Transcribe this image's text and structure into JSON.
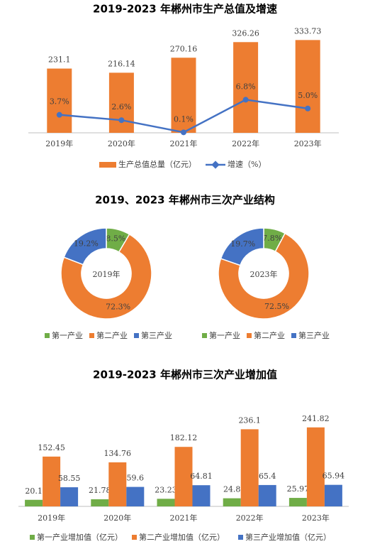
{
  "chart_data": [
    {
      "type": "bar_line",
      "title": "2019-2023 年郴州市生产总值及增速",
      "categories": [
        "2019年",
        "2020年",
        "2021年",
        "2022年",
        "2023年"
      ],
      "series": [
        {
          "name": "生产总值总量（亿元）",
          "color": "#ed7d31",
          "values": [
            231.1,
            216.14,
            270.16,
            326.26,
            333.73
          ]
        },
        {
          "name": "增速（%）",
          "color": "#4472c4",
          "axis": "y2",
          "values": [
            3.7,
            2.6,
            0.1,
            6.8,
            5.0
          ],
          "value_labels": [
            "3.7%",
            "2.6%",
            "0.1%",
            "6.8%",
            "5.0%"
          ]
        }
      ],
      "ylim": [
        0,
        350
      ],
      "y2lim": [
        0,
        20
      ]
    },
    {
      "type": "donut",
      "title": "2019、2023 年郴州市三次产业结构",
      "categories": [
        "第一产业",
        "第二产业",
        "第三产业"
      ],
      "colors": [
        "#70ad47",
        "#ed7d31",
        "#4472c4"
      ],
      "series": [
        {
          "name": "2019年",
          "values": [
            8.5,
            72.3,
            19.2
          ],
          "value_labels": [
            "8.5%",
            "72.3%",
            "19.2%"
          ]
        },
        {
          "name": "2023年",
          "values": [
            7.8,
            72.5,
            19.7
          ],
          "value_labels": [
            "7.8%",
            "72.5%",
            "19.7%"
          ]
        }
      ]
    },
    {
      "type": "grouped_bar",
      "title": "2019-2023 年郴州市三次产业增加值",
      "categories": [
        "2019年",
        "2020年",
        "2021年",
        "2022年",
        "2023年"
      ],
      "series": [
        {
          "name": "第一产业增加值（亿元）",
          "color": "#70ad47",
          "values": [
            20.1,
            21.78,
            23.23,
            24.8,
            25.97
          ]
        },
        {
          "name": "第二产业增加值（亿元）",
          "color": "#ed7d31",
          "values": [
            152.45,
            134.76,
            182.12,
            236.1,
            241.82
          ]
        },
        {
          "name": "第三产业增加值（亿元）",
          "color": "#4472c4",
          "values": [
            58.55,
            59.6,
            64.81,
            65.4,
            65.94
          ]
        }
      ],
      "ylim": [
        0,
        300
      ]
    }
  ]
}
